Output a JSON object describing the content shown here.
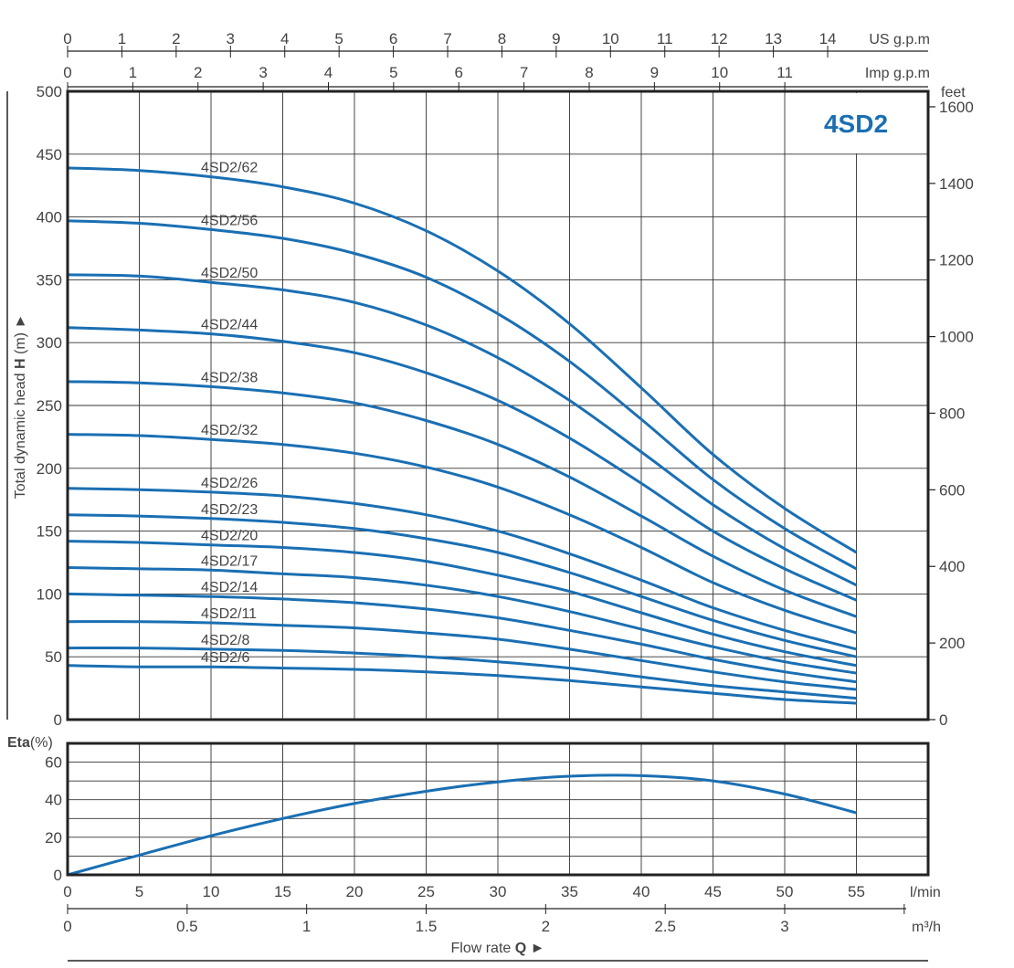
{
  "chart_data": [
    {
      "type": "line",
      "title": "4SD2",
      "x_axes": {
        "us_gpm": {
          "label": "US g.p.m",
          "ticks": [
            "0",
            "1",
            "2",
            "3",
            "4",
            "5",
            "6",
            "7",
            "8",
            "9",
            "10",
            "11",
            "12",
            "13",
            "14"
          ]
        },
        "imp_gpm": {
          "label": "Imp g.p.m",
          "ticks": [
            "0",
            "1",
            "2",
            "3",
            "4",
            "5",
            "6",
            "7",
            "8",
            "9",
            "10",
            "11"
          ]
        }
      },
      "x": [
        0,
        5,
        10,
        15,
        20,
        25,
        30,
        35,
        40,
        45,
        50,
        55
      ],
      "xlim": [
        0,
        60
      ],
      "ylabel": "Total dynamic head",
      "ylabel_bold": "H",
      "ylabel_unit": "(m)",
      "ylabel_arrow": "►",
      "ylim": [
        0,
        500
      ],
      "y_ticks": [
        "0",
        "50",
        "100",
        "150",
        "200",
        "250",
        "300",
        "350",
        "400",
        "450",
        "500"
      ],
      "y2_label": "feet",
      "y2_ticks": [
        "0",
        "200",
        "400",
        "600",
        "800",
        "1000",
        "1200",
        "1400",
        "1600"
      ],
      "series": [
        {
          "name": "4SD2/62",
          "values": [
            439,
            437,
            432,
            424,
            411,
            389,
            357,
            315,
            264,
            211,
            168,
            133
          ]
        },
        {
          "name": "4SD2/56",
          "values": [
            397,
            395,
            390,
            383,
            371,
            352,
            323,
            285,
            239,
            191,
            152,
            120
          ]
        },
        {
          "name": "4SD2/50",
          "values": [
            354,
            353,
            348,
            342,
            332,
            314,
            288,
            254,
            213,
            171,
            136,
            107
          ]
        },
        {
          "name": "4SD2/44",
          "values": [
            312,
            310,
            307,
            301,
            292,
            276,
            254,
            224,
            188,
            150,
            120,
            95
          ]
        },
        {
          "name": "4SD2/38",
          "values": [
            269,
            268,
            265,
            260,
            252,
            238,
            219,
            193,
            162,
            130,
            103,
            82
          ]
        },
        {
          "name": "4SD2/32",
          "values": [
            227,
            226,
            223,
            219,
            212,
            201,
            185,
            163,
            137,
            109,
            87,
            69
          ]
        },
        {
          "name": "4SD2/26",
          "values": [
            184,
            183,
            181,
            178,
            172,
            163,
            150,
            132,
            111,
            89,
            71,
            56
          ]
        },
        {
          "name": "4SD2/23",
          "values": [
            163,
            162,
            160,
            157,
            152,
            144,
            133,
            117,
            98,
            79,
            63,
            50
          ]
        },
        {
          "name": "4SD2/20",
          "values": [
            142,
            141,
            139,
            137,
            133,
            126,
            115,
            102,
            85,
            68,
            54,
            43
          ]
        },
        {
          "name": "4SD2/17",
          "values": [
            121,
            120,
            119,
            116,
            113,
            107,
            98,
            86,
            72,
            58,
            46,
            37
          ]
        },
        {
          "name": "4SD2/14",
          "values": [
            100,
            99,
            98,
            96,
            93,
            88,
            81,
            71,
            60,
            48,
            38,
            30
          ]
        },
        {
          "name": "4SD2/11",
          "values": [
            78,
            78,
            77,
            75,
            73,
            69,
            64,
            56,
            47,
            38,
            30,
            24
          ]
        },
        {
          "name": "4SD2/8",
          "values": [
            57,
            57,
            56,
            55,
            53,
            50,
            46,
            41,
            34,
            27,
            22,
            17
          ]
        },
        {
          "name": "4SD2/6",
          "values": [
            43,
            42,
            42,
            41,
            40,
            38,
            35,
            31,
            26,
            21,
            16,
            13
          ]
        }
      ],
      "line_color": "#1a6fb3",
      "title_color": "#1a6fb3",
      "grid": true
    },
    {
      "type": "line",
      "ylabel_bold": "Eta",
      "ylabel_unit": "(%)",
      "ylim": [
        0,
        70
      ],
      "y_ticks": [
        "0",
        "20",
        "40",
        "60"
      ],
      "x": [
        0,
        5,
        10,
        15,
        20,
        25,
        30,
        35,
        40,
        45,
        50,
        55
      ],
      "xlim": [
        0,
        60
      ],
      "series": [
        {
          "values": [
            0,
            10.5,
            20.8,
            30,
            38,
            44.5,
            49.5,
            52.5,
            52.8,
            50,
            43,
            33
          ]
        }
      ],
      "x_axes": {
        "lmin": {
          "label": "l/min",
          "ticks": [
            "0",
            "5",
            "10",
            "15",
            "20",
            "25",
            "30",
            "35",
            "40",
            "45",
            "50",
            "55"
          ]
        },
        "m3h": {
          "label": "m³/h",
          "ticks": [
            "0",
            "0.5",
            "1",
            "1.5",
            "2",
            "2.5",
            "3"
          ]
        }
      },
      "xlabel": "Flow rate",
      "xlabel_bold": "Q",
      "xlabel_arrow": "►",
      "line_color": "#1a6fb3",
      "grid": true
    }
  ]
}
